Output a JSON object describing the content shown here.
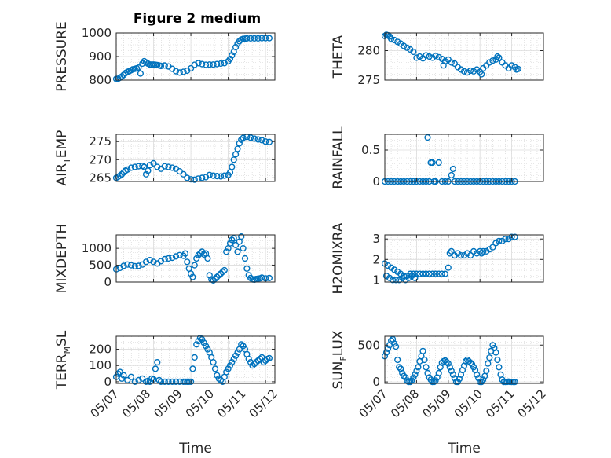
{
  "figure": {
    "title": "Figure 2 medium"
  },
  "colors": {
    "marker": "#0072BD",
    "axis": "#262626",
    "grid": "#d0d0d0"
  },
  "chart_data": [
    {
      "id": "pressure",
      "type": "scatter",
      "ylabel": {
        "main": "PRESSURE",
        "sub": "",
        "rest": ""
      },
      "ylim": [
        800,
        1000
      ],
      "yticks": [
        800,
        900,
        1000
      ],
      "xlim": [
        "05/07",
        "05/11 06:00"
      ],
      "xticks": [],
      "grid": true,
      "x": [
        0.0,
        0.05,
        0.1,
        0.15,
        0.2,
        0.25,
        0.3,
        0.35,
        0.4,
        0.45,
        0.5,
        0.55,
        0.6,
        0.65,
        0.7,
        0.75,
        0.8,
        0.85,
        0.9,
        0.95,
        1.0,
        1.05,
        1.1,
        1.15,
        1.2,
        1.3,
        1.4,
        1.5,
        1.6,
        1.7,
        1.8,
        1.9,
        2.0,
        2.1,
        2.2,
        2.3,
        2.4,
        2.5,
        2.6,
        2.7,
        2.8,
        2.9,
        3.0,
        3.05,
        3.1,
        3.15,
        3.2,
        3.25,
        3.3,
        3.35,
        3.4,
        3.45,
        3.5,
        3.6,
        3.7,
        3.8,
        3.9,
        4.0,
        4.1
      ],
      "y": [
        805,
        806,
        810,
        815,
        822,
        830,
        835,
        838,
        842,
        846,
        848,
        850,
        853,
        828,
        870,
        880,
        875,
        870,
        866,
        866,
        866,
        865,
        864,
        862,
        860,
        862,
        858,
        848,
        838,
        832,
        835,
        840,
        850,
        865,
        872,
        868,
        865,
        866,
        866,
        868,
        870,
        872,
        880,
        890,
        905,
        920,
        940,
        955,
        965,
        972,
        975,
        976,
        977,
        977,
        977,
        977,
        978,
        978,
        978
      ]
    },
    {
      "id": "theta",
      "type": "scatter",
      "ylabel": {
        "main": "THETA",
        "sub": "",
        "rest": ""
      },
      "ylim": [
        275,
        283
      ],
      "yticks": [
        275,
        280
      ],
      "xlim": [
        "05/07",
        "05/12"
      ],
      "xticks": [],
      "grid": true,
      "x": [
        0.0,
        0.05,
        0.1,
        0.15,
        0.2,
        0.3,
        0.4,
        0.5,
        0.6,
        0.7,
        0.8,
        0.9,
        1.0,
        1.1,
        1.2,
        1.3,
        1.4,
        1.5,
        1.6,
        1.7,
        1.8,
        1.85,
        1.9,
        2.0,
        2.1,
        2.2,
        2.3,
        2.4,
        2.5,
        2.6,
        2.7,
        2.8,
        2.9,
        3.0,
        3.05,
        3.1,
        3.2,
        3.3,
        3.4,
        3.5,
        3.55,
        3.6,
        3.7,
        3.8,
        3.9,
        4.0,
        4.1,
        4.15,
        4.2
      ],
      "y": [
        282.5,
        282.7,
        282.6,
        282.4,
        282.0,
        281.8,
        281.5,
        281.2,
        280.8,
        280.5,
        280.2,
        279.8,
        278.8,
        279.0,
        278.7,
        279.2,
        279.0,
        278.8,
        279.1,
        278.9,
        278.6,
        277.5,
        278.2,
        278.5,
        278.0,
        277.8,
        277.2,
        276.8,
        276.5,
        276.3,
        276.6,
        276.5,
        276.8,
        276.4,
        276.0,
        277.0,
        277.5,
        278.0,
        278.3,
        278.5,
        279.0,
        278.8,
        278.0,
        277.5,
        277.0,
        277.5,
        277.2,
        276.8,
        276.9
      ]
    },
    {
      "id": "air_temp",
      "type": "scatter",
      "ylabel": {
        "main": "AIR",
        "sub": "T",
        "rest": "EMP"
      },
      "ylim": [
        264,
        277
      ],
      "yticks": [
        265,
        270,
        275
      ],
      "xlim": [
        "05/07",
        "05/11 06:00"
      ],
      "xticks": [],
      "grid": true,
      "x": [
        0.0,
        0.05,
        0.1,
        0.15,
        0.2,
        0.25,
        0.3,
        0.4,
        0.5,
        0.6,
        0.7,
        0.75,
        0.8,
        0.85,
        0.9,
        1.0,
        1.1,
        1.2,
        1.3,
        1.4,
        1.5,
        1.6,
        1.7,
        1.8,
        1.9,
        2.0,
        2.1,
        2.2,
        2.3,
        2.4,
        2.5,
        2.6,
        2.7,
        2.8,
        2.9,
        3.0,
        3.05,
        3.1,
        3.15,
        3.2,
        3.25,
        3.3,
        3.35,
        3.4,
        3.5,
        3.6,
        3.7,
        3.8,
        3.9,
        4.0,
        4.1
      ],
      "y": [
        265.0,
        265.3,
        265.6,
        266.0,
        266.5,
        267.0,
        267.3,
        267.8,
        268.0,
        268.2,
        268.3,
        268.0,
        266.0,
        267.0,
        268.5,
        269.0,
        268.0,
        267.5,
        268.2,
        268.0,
        267.8,
        267.5,
        266.8,
        266.0,
        265.0,
        264.6,
        264.5,
        264.8,
        265.0,
        265.2,
        265.8,
        265.6,
        265.5,
        265.4,
        265.6,
        265.8,
        266.5,
        268.0,
        270.0,
        271.5,
        273.0,
        274.5,
        275.5,
        276.0,
        276.3,
        276.1,
        275.8,
        275.6,
        275.4,
        275.0,
        274.9
      ]
    },
    {
      "id": "rainfall",
      "type": "scatter",
      "ylabel": {
        "main": "RAINFALL",
        "sub": "",
        "rest": ""
      },
      "ylim": [
        0,
        0.75
      ],
      "yticks": [
        0,
        0.5
      ],
      "xlim": [
        "05/07",
        "05/12"
      ],
      "xticks": [],
      "grid": true,
      "x": [
        0.0,
        0.1,
        0.2,
        0.3,
        0.4,
        0.5,
        0.6,
        0.7,
        0.8,
        0.9,
        1.0,
        1.1,
        1.2,
        1.3,
        1.35,
        1.4,
        1.45,
        1.5,
        1.55,
        1.6,
        1.7,
        1.8,
        1.9,
        2.0,
        2.1,
        2.15,
        2.2,
        2.3,
        2.4,
        2.5,
        2.6,
        2.7,
        2.8,
        2.9,
        3.0,
        3.1,
        3.2,
        3.3,
        3.4,
        3.5,
        3.6,
        3.7,
        3.8,
        3.9,
        4.0,
        4.1
      ],
      "y": [
        0,
        0,
        0,
        0,
        0,
        0,
        0,
        0,
        0,
        0,
        0,
        0,
        0,
        0,
        0.7,
        0,
        0.3,
        0.3,
        0,
        0,
        0.3,
        0,
        0,
        0,
        0.1,
        0.2,
        0,
        0,
        0,
        0,
        0,
        0,
        0,
        0,
        0,
        0,
        0,
        0,
        0,
        0,
        0,
        0,
        0,
        0,
        0,
        0
      ]
    },
    {
      "id": "mixdepth",
      "type": "scatter",
      "ylabel": {
        "main": "MIXDEPTH",
        "sub": "",
        "rest": ""
      },
      "ylim": [
        0,
        1400
      ],
      "yticks": [
        0,
        500,
        1000
      ],
      "xlim": [
        "05/07",
        "05/11 06:00"
      ],
      "xticks": [],
      "grid": true,
      "x": [
        0.0,
        0.1,
        0.2,
        0.3,
        0.4,
        0.5,
        0.6,
        0.7,
        0.8,
        0.9,
        1.0,
        1.1,
        1.2,
        1.3,
        1.4,
        1.5,
        1.6,
        1.7,
        1.8,
        1.85,
        1.9,
        1.95,
        2.0,
        2.05,
        2.1,
        2.15,
        2.2,
        2.25,
        2.3,
        2.35,
        2.4,
        2.45,
        2.5,
        2.55,
        2.6,
        2.65,
        2.7,
        2.75,
        2.8,
        2.85,
        2.9,
        2.95,
        3.0,
        3.05,
        3.1,
        3.15,
        3.2,
        3.25,
        3.3,
        3.35,
        3.4,
        3.45,
        3.5,
        3.55,
        3.6,
        3.65,
        3.7,
        3.75,
        3.8,
        3.85,
        3.9,
        4.0,
        4.1
      ],
      "y": [
        380,
        420,
        480,
        520,
        500,
        470,
        480,
        520,
        600,
        650,
        600,
        550,
        620,
        680,
        700,
        720,
        760,
        800,
        780,
        850,
        600,
        400,
        250,
        150,
        500,
        700,
        800,
        850,
        900,
        820,
        850,
        700,
        200,
        80,
        50,
        100,
        150,
        200,
        250,
        300,
        350,
        900,
        1000,
        1150,
        1250,
        1300,
        1100,
        900,
        1200,
        1350,
        1000,
        700,
        400,
        200,
        120,
        80,
        70,
        90,
        100,
        110,
        130,
        110,
        120
      ]
    },
    {
      "id": "h2omixra",
      "type": "scatter",
      "ylabel": {
        "main": "H2OMIXRA",
        "sub": "",
        "rest": ""
      },
      "ylim": [
        0.9,
        3.2
      ],
      "yticks": [
        1,
        2,
        3
      ],
      "xlim": [
        "05/07",
        "05/12"
      ],
      "xticks": [],
      "grid": true,
      "x": [
        0.0,
        0.05,
        0.1,
        0.15,
        0.2,
        0.25,
        0.3,
        0.35,
        0.4,
        0.45,
        0.5,
        0.55,
        0.6,
        0.65,
        0.7,
        0.75,
        0.8,
        0.85,
        0.9,
        0.95,
        1.0,
        1.1,
        1.2,
        1.3,
        1.4,
        1.5,
        1.6,
        1.7,
        1.8,
        1.9,
        2.0,
        2.05,
        2.1,
        2.2,
        2.3,
        2.4,
        2.5,
        2.6,
        2.7,
        2.8,
        2.9,
        3.0,
        3.05,
        3.1,
        3.2,
        3.3,
        3.4,
        3.5,
        3.6,
        3.7,
        3.8,
        3.9,
        4.0,
        4.1
      ],
      "y": [
        1.8,
        1.2,
        1.7,
        1.1,
        1.6,
        1.0,
        1.5,
        1.0,
        1.4,
        1.0,
        1.3,
        1.1,
        1.2,
        1.0,
        1.2,
        1.1,
        1.3,
        1.2,
        1.3,
        1.1,
        1.3,
        1.3,
        1.3,
        1.3,
        1.3,
        1.3,
        1.3,
        1.3,
        1.3,
        1.3,
        1.6,
        2.3,
        2.4,
        2.2,
        2.3,
        2.2,
        2.2,
        2.3,
        2.2,
        2.4,
        2.3,
        2.4,
        2.3,
        2.4,
        2.4,
        2.5,
        2.6,
        2.8,
        2.9,
        2.9,
        3.0,
        3.0,
        3.1,
        3.1
      ]
    },
    {
      "id": "terr_msl",
      "type": "scatter",
      "ylabel": {
        "main": "TERR",
        "sub": "M",
        "rest": "SL"
      },
      "ylim": [
        -10,
        280
      ],
      "yticks": [
        0,
        100,
        200
      ],
      "xlim": [
        "05/07",
        "05/11 06:00"
      ],
      "xticks": [
        "05/07",
        "05/08",
        "05/09",
        "05/10",
        "05/11",
        "05/12"
      ],
      "xlabel": "Time",
      "grid": true,
      "x": [
        0.0,
        0.05,
        0.1,
        0.15,
        0.2,
        0.3,
        0.4,
        0.5,
        0.6,
        0.7,
        0.8,
        0.85,
        0.9,
        0.95,
        1.0,
        1.05,
        1.1,
        1.15,
        1.2,
        1.3,
        1.4,
        1.5,
        1.6,
        1.7,
        1.8,
        1.85,
        1.9,
        1.95,
        2.0,
        2.05,
        2.1,
        2.15,
        2.2,
        2.25,
        2.3,
        2.35,
        2.4,
        2.45,
        2.5,
        2.55,
        2.6,
        2.65,
        2.7,
        2.75,
        2.8,
        2.85,
        2.9,
        2.95,
        3.0,
        3.05,
        3.1,
        3.15,
        3.2,
        3.25,
        3.3,
        3.35,
        3.4,
        3.45,
        3.5,
        3.55,
        3.6,
        3.65,
        3.7,
        3.75,
        3.8,
        3.85,
        3.9,
        3.95,
        4.0,
        4.05,
        4.1
      ],
      "y": [
        30,
        50,
        60,
        20,
        40,
        10,
        30,
        0,
        10,
        20,
        0,
        5,
        0,
        20,
        15,
        80,
        120,
        10,
        0,
        0,
        0,
        0,
        0,
        0,
        0,
        0,
        0,
        0,
        0,
        80,
        150,
        230,
        250,
        270,
        260,
        240,
        220,
        200,
        180,
        150,
        120,
        80,
        40,
        20,
        10,
        0,
        30,
        60,
        80,
        100,
        120,
        140,
        160,
        180,
        200,
        230,
        220,
        200,
        170,
        140,
        120,
        100,
        110,
        120,
        130,
        140,
        150,
        120,
        130,
        140,
        145
      ]
    },
    {
      "id": "sun_flux",
      "type": "scatter",
      "ylabel": {
        "main": "SUN",
        "sub": "F",
        "rest": "LUX"
      },
      "ylim": [
        -20,
        620
      ],
      "yticks": [
        0,
        500
      ],
      "xlim": [
        "05/07",
        "05/12"
      ],
      "xticks": [
        "05/07",
        "05/08",
        "05/09",
        "05/10",
        "05/11",
        "05/12"
      ],
      "xlabel": "Time",
      "grid": true,
      "x": [
        0.0,
        0.05,
        0.1,
        0.15,
        0.2,
        0.25,
        0.3,
        0.35,
        0.4,
        0.45,
        0.5,
        0.55,
        0.6,
        0.65,
        0.7,
        0.75,
        0.8,
        0.85,
        0.9,
        0.95,
        1.0,
        1.05,
        1.1,
        1.15,
        1.2,
        1.25,
        1.3,
        1.35,
        1.4,
        1.45,
        1.5,
        1.55,
        1.6,
        1.65,
        1.7,
        1.75,
        1.8,
        1.85,
        1.9,
        1.95,
        2.0,
        2.05,
        2.1,
        2.15,
        2.2,
        2.25,
        2.3,
        2.35,
        2.4,
        2.45,
        2.5,
        2.55,
        2.6,
        2.65,
        2.7,
        2.75,
        2.8,
        2.85,
        2.9,
        2.95,
        3.0,
        3.05,
        3.1,
        3.15,
        3.2,
        3.25,
        3.3,
        3.35,
        3.4,
        3.45,
        3.5,
        3.55,
        3.6,
        3.65,
        3.7,
        3.75,
        3.8,
        3.85,
        3.9,
        3.95,
        4.0,
        4.05,
        4.1
      ],
      "y": [
        350,
        400,
        450,
        500,
        560,
        580,
        520,
        480,
        300,
        200,
        180,
        120,
        80,
        60,
        20,
        0,
        0,
        20,
        60,
        100,
        150,
        200,
        280,
        350,
        420,
        300,
        200,
        120,
        60,
        30,
        0,
        0,
        20,
        60,
        120,
        200,
        260,
        280,
        290,
        270,
        250,
        200,
        150,
        100,
        50,
        0,
        0,
        40,
        100,
        160,
        220,
        280,
        300,
        280,
        260,
        240,
        200,
        160,
        100,
        50,
        0,
        0,
        30,
        80,
        150,
        250,
        330,
        420,
        500,
        460,
        400,
        300,
        200,
        100,
        30,
        0,
        0,
        0,
        5,
        0,
        0,
        0,
        0
      ]
    }
  ]
}
